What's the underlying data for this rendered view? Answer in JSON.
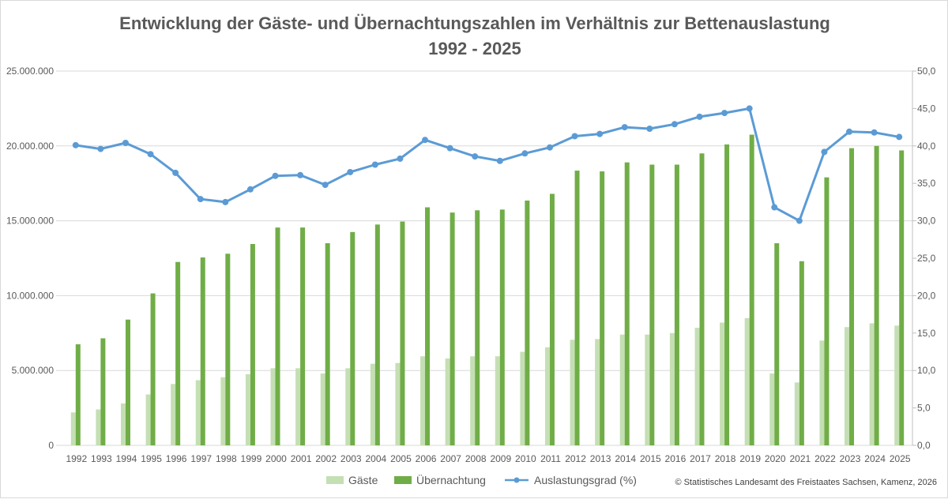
{
  "chart_data": {
    "type": "bar+line",
    "title": [
      "Entwicklung der Gäste- und Übernachtungszahlen im Verhältnis zur Bettenauslastung",
      "1992 - 2025"
    ],
    "categories": [
      "1992",
      "1993",
      "1994",
      "1995",
      "1996",
      "1997",
      "1998",
      "1999",
      "2000",
      "2001",
      "2002",
      "2003",
      "2004",
      "2005",
      "2006",
      "2007",
      "2008",
      "2009",
      "2010",
      "2011",
      "2012",
      "2013",
      "2014",
      "2015",
      "2016",
      "2017",
      "2018",
      "2019",
      "2020",
      "2021",
      "2022",
      "2023",
      "2024",
      "2025"
    ],
    "y_left": {
      "range": [
        0,
        25000000
      ],
      "ticks": [
        "0",
        "5.000.000",
        "10.000.000",
        "15.000.000",
        "20.000.000",
        "25.000.000"
      ]
    },
    "y_right": {
      "range": [
        0,
        50
      ],
      "ticks": [
        "0,0",
        "5,0",
        "10,0",
        "15,0",
        "20,0",
        "25,0",
        "30,0",
        "35,0",
        "40,0",
        "45,0",
        "50,0"
      ]
    },
    "grid": true,
    "legend_position": "bottom",
    "series": [
      {
        "name": "Gäste",
        "type": "bar",
        "axis": "left",
        "color": "#c5dfb4",
        "values": [
          2200000,
          2400000,
          2800000,
          3400000,
          4100000,
          4350000,
          4550000,
          4750000,
          5150000,
          5150000,
          4800000,
          5150000,
          5450000,
          5500000,
          5950000,
          5800000,
          5950000,
          5950000,
          6250000,
          6550000,
          7050000,
          7100000,
          7400000,
          7400000,
          7500000,
          7850000,
          8200000,
          8500000,
          4800000,
          4200000,
          7000000,
          7900000,
          8150000,
          8000000
        ]
      },
      {
        "name": "Übernachtung",
        "type": "bar",
        "axis": "left",
        "color": "#70ad47",
        "values": [
          6750000,
          7150000,
          8400000,
          10150000,
          12250000,
          12550000,
          12800000,
          13450000,
          14550000,
          14550000,
          13500000,
          14250000,
          14750000,
          14950000,
          15900000,
          15550000,
          15700000,
          15750000,
          16350000,
          16800000,
          18350000,
          18300000,
          18900000,
          18750000,
          18750000,
          19500000,
          20100000,
          20750000,
          13500000,
          12300000,
          17900000,
          19850000,
          20000000,
          19700000
        ]
      },
      {
        "name": "Auslastungsgrad (%)",
        "type": "line",
        "axis": "right",
        "color": "#5b9bd5",
        "values": [
          40.1,
          39.6,
          40.4,
          38.9,
          36.4,
          32.9,
          32.5,
          34.2,
          36.0,
          36.1,
          34.8,
          36.5,
          37.5,
          38.3,
          40.8,
          39.7,
          38.6,
          38.0,
          39.0,
          39.8,
          41.3,
          41.6,
          42.5,
          42.3,
          42.9,
          43.9,
          44.4,
          45.0,
          31.8,
          30.0,
          39.2,
          41.9,
          41.8,
          41.2
        ]
      }
    ]
  },
  "source_note": "© Statistisches Landesamt des Freistaates Sachsen, Kamenz, 2026"
}
